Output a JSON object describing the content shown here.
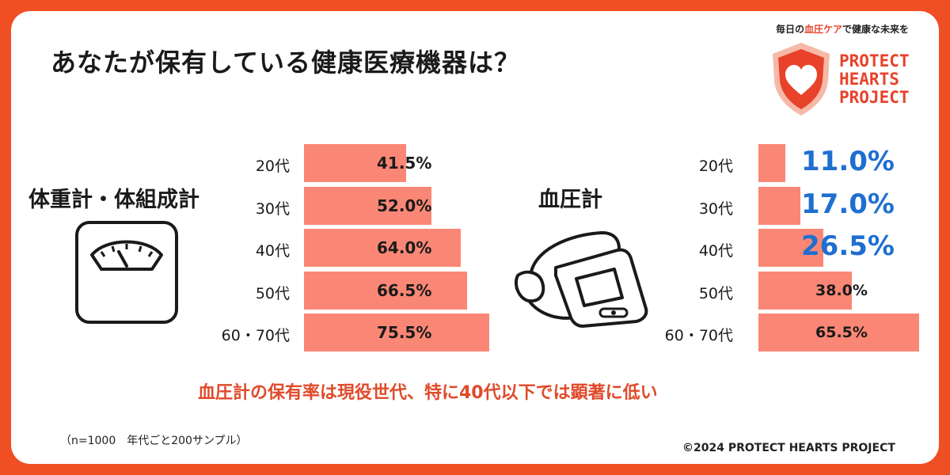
{
  "title": "あなたが保有している健康医療機器は？",
  "brand": {
    "tagline_parts": [
      "毎日の",
      "血圧ケア",
      "で健康な未来を"
    ],
    "logo_lines": [
      "PROTECT",
      "HEARTS",
      "PROJECT"
    ],
    "accent": "#e8422a",
    "border": "#f04e23"
  },
  "icons": [
    "scale-icon",
    "blood-pressure-monitor-icon",
    "heart-shield-logo-icon"
  ],
  "colors": {
    "bar": "#fa8775",
    "highlight_value": "#1f6fd1",
    "text": "#1a1a1a"
  },
  "chart_data": [
    {
      "type": "bar",
      "orientation": "horizontal",
      "title": "体重計・体組成計",
      "categories": [
        "20代",
        "30代",
        "40代",
        "50代",
        "60・70代"
      ],
      "values": [
        41.5,
        52.0,
        64.0,
        66.5,
        75.5
      ],
      "labels": [
        "41.5%",
        "52.0%",
        "64.0%",
        "66.5%",
        "75.5%"
      ]
    },
    {
      "type": "bar",
      "orientation": "horizontal",
      "title": "血圧計",
      "categories": [
        "20代",
        "30代",
        "40代",
        "50代",
        "60・70代"
      ],
      "values": [
        11.0,
        17.0,
        26.5,
        38.0,
        65.5
      ],
      "labels": [
        "11.0%",
        "17.0%",
        "26.5%",
        "38.0%",
        "65.5%"
      ],
      "emphasized": [
        "20代",
        "30代",
        "40代"
      ]
    }
  ],
  "highlight_text": "血圧計の保有率は現役世代、特に40代以下では顕著に低い",
  "note": "（n=1000　年代ごと200サンプル）",
  "copyright": "©2024 PROTECT HEARTS PROJECT"
}
